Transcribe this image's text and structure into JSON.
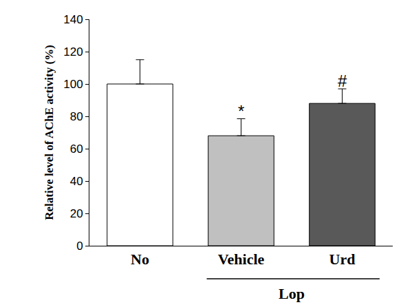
{
  "chart_data": {
    "type": "bar",
    "y_label": "Relative level of AChE activity (%)",
    "categories": [
      "No",
      "Vehicle",
      "Urd"
    ],
    "values": [
      100,
      68,
      88
    ],
    "errors": [
      15,
      10.5,
      9
    ],
    "colors": [
      "#ffffff",
      "#c0c0c0",
      "#595959"
    ],
    "ylim": [
      0,
      140
    ],
    "yticks": [
      0,
      20,
      40,
      60,
      80,
      100,
      120,
      140
    ],
    "grid": false,
    "annotations": [
      {
        "category": "Vehicle",
        "text": "*"
      },
      {
        "category": "Urd",
        "text": "#"
      }
    ],
    "group_label": {
      "text": "Lop",
      "categories": [
        "Vehicle",
        "Urd"
      ]
    }
  }
}
